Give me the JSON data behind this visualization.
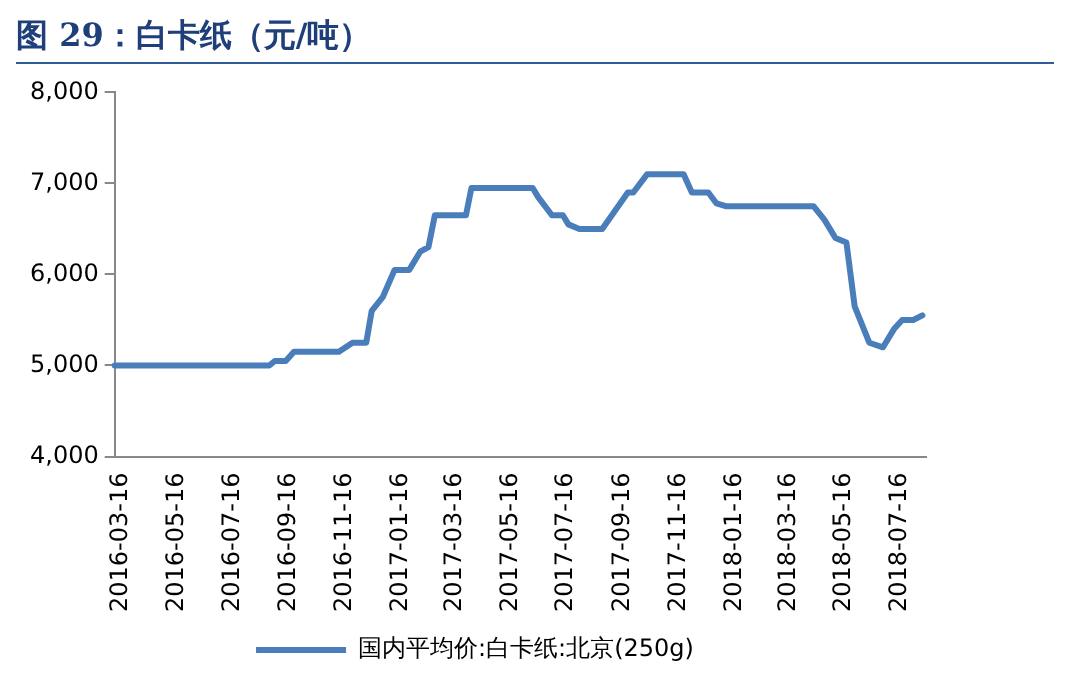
{
  "chart_data": {
    "type": "line",
    "title": "图 29：白卡纸（元/吨）",
    "x": [
      "2016-03-16",
      "2016-09-01",
      "2016-09-07",
      "2016-09-19",
      "2016-09-28",
      "2016-11-16",
      "2016-12-01",
      "2016-12-16",
      "2016-12-22",
      "2017-01-03",
      "2017-01-16",
      "2017-02-01",
      "2017-02-13",
      "2017-02-22",
      "2017-03-01",
      "2017-04-04",
      "2017-04-10",
      "2017-06-16",
      "2017-06-22",
      "2017-07-07",
      "2017-07-19",
      "2017-07-25",
      "2017-08-06",
      "2017-08-31",
      "2017-09-28",
      "2017-10-04",
      "2017-10-19",
      "2017-11-28",
      "2017-12-07",
      "2017-12-25",
      "2018-01-03",
      "2018-01-13",
      "2018-04-19",
      "2018-05-01",
      "2018-05-13",
      "2018-05-25",
      "2018-06-03",
      "2018-06-19",
      "2018-07-04",
      "2018-07-16",
      "2018-07-25",
      "2018-08-06",
      "2018-08-16"
    ],
    "series": [
      {
        "name": "国内平均价:白卡纸:北京(250g)",
        "color": "#4a7ebb",
        "values": [
          5000,
          5000,
          5050,
          5050,
          5150,
          5150,
          5250,
          5250,
          5600,
          5750,
          6050,
          6050,
          6250,
          6300,
          6650,
          6650,
          6950,
          6950,
          6850,
          6650,
          6650,
          6550,
          6500,
          6500,
          6900,
          6900,
          7100,
          7100,
          6900,
          6900,
          6780,
          6750,
          6750,
          6600,
          6400,
          6350,
          5650,
          5250,
          5200,
          5400,
          5500,
          5500,
          5550
        ]
      }
    ],
    "xlim": [
      "2016-03-16",
      "2018-08-20"
    ],
    "xticks": [
      "2016-03-16",
      "2016-05-16",
      "2016-07-16",
      "2016-09-16",
      "2016-11-16",
      "2017-01-16",
      "2017-03-16",
      "2017-05-16",
      "2017-07-16",
      "2017-09-16",
      "2017-11-16",
      "2018-01-16",
      "2018-03-16",
      "2018-05-16",
      "2018-07-16"
    ],
    "ylim": [
      4000,
      8000
    ],
    "yticks": [
      {
        "value": 4000,
        "label": "4,000"
      },
      {
        "value": 5000,
        "label": "5,000"
      },
      {
        "value": 6000,
        "label": "6,000"
      },
      {
        "value": 7000,
        "label": "7,000"
      },
      {
        "value": 8000,
        "label": "8,000"
      }
    ],
    "grid": false,
    "legend": "bottom",
    "marker": "none",
    "line_style": "solid"
  }
}
